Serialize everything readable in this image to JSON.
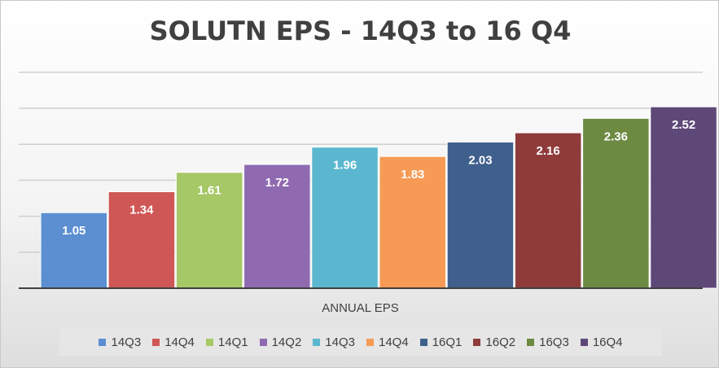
{
  "chart_data": {
    "type": "bar",
    "title": "SOLUTN EPS - 14Q3 to 16 Q4",
    "xlabel": "ANNUAL EPS",
    "ylabel": "",
    "ylim": [
      0,
      2.5
    ],
    "grid": true,
    "legend_position": "bottom",
    "categories": [
      "14Q3",
      "14Q4",
      "14Q1",
      "14Q2",
      "14Q3",
      "14Q4",
      "16Q1",
      "16Q2",
      "16Q3",
      "16Q4"
    ],
    "values": [
      1.05,
      1.34,
      1.61,
      1.72,
      1.96,
      1.83,
      2.03,
      2.16,
      2.36,
      2.52
    ],
    "data_labels": [
      "1.05",
      "1.34",
      "1.61",
      "1.72",
      "1.96",
      "1.83",
      "2.03",
      "2.16",
      "2.36",
      "2.52"
    ],
    "colors": [
      "#5b8fd1",
      "#cf5755",
      "#a6c867",
      "#8f6ab0",
      "#5bb7cf",
      "#f69a55",
      "#3f5f8c",
      "#8e3b3a",
      "#6d8a42",
      "#5e4878"
    ]
  }
}
